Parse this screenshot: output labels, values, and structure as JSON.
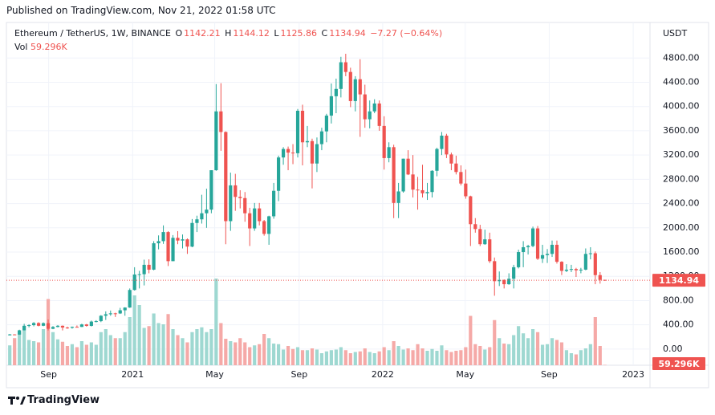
{
  "header": {
    "published": "Published on TradingView.com, Nov 21, 2022 01:58 UTC"
  },
  "footer": {
    "brand": "TradingView"
  },
  "chart_data": {
    "type": "candlestick",
    "symbol": "Ethereum / TetherUS, 1W, BINANCE",
    "ohlc_labels": [
      "O",
      "H",
      "L",
      "C"
    ],
    "change": "−7.27 (−0.64%)",
    "volume_name": "Vol",
    "volume_label": "59.296K",
    "currency": "USDT",
    "up_color": "#26a69a",
    "down_color": "#ef5350",
    "volume_up_color": "#9ed8d1",
    "volume_down_color": "#f5a9a7",
    "grid": true,
    "xlim": [
      -0.7,
      133.4
    ],
    "xticks": [
      {
        "value": 8.1,
        "label": "Sep"
      },
      {
        "value": 25.6,
        "label": "2021"
      },
      {
        "value": 42.7,
        "label": "May"
      },
      {
        "value": 60.3,
        "label": "Sep"
      },
      {
        "value": 77.7,
        "label": "2022"
      },
      {
        "value": 94.9,
        "label": "May"
      },
      {
        "value": 112.4,
        "label": "Sep"
      },
      {
        "value": 129.9,
        "label": "2023"
      }
    ],
    "ylim": [
      -266,
      5386
    ],
    "yticks": [
      {
        "value": 0,
        "label": "0.00"
      },
      {
        "value": 400,
        "label": "400.00"
      },
      {
        "value": 800,
        "label": "800.00"
      },
      {
        "value": 1200,
        "label": "1200.00"
      },
      {
        "value": 1600,
        "label": "1600.00"
      },
      {
        "value": 2000,
        "label": "2000.00"
      },
      {
        "value": 2400,
        "label": "2400.00"
      },
      {
        "value": 2800,
        "label": "2800.00"
      },
      {
        "value": 3200,
        "label": "3200.00"
      },
      {
        "value": 3600,
        "label": "3600.00"
      },
      {
        "value": 4000,
        "label": "4000.00"
      },
      {
        "value": 4400,
        "label": "4400.00"
      },
      {
        "value": 4800,
        "label": "4800.00"
      }
    ],
    "volume_ylim": [
      0,
      16000
    ],
    "ohlc": [
      [
        228,
        250,
        225,
        242
      ],
      [
        242,
        245,
        230,
        239
      ],
      [
        239,
        320,
        236,
        310
      ],
      [
        310,
        417,
        308,
        385
      ],
      [
        385,
        410,
        358,
        395
      ],
      [
        395,
        445,
        375,
        430
      ],
      [
        430,
        443,
        375,
        385
      ],
      [
        385,
        440,
        378,
        428
      ],
      [
        428,
        488,
        308,
        335
      ],
      [
        335,
        380,
        328,
        365
      ],
      [
        365,
        395,
        358,
        385
      ],
      [
        385,
        390,
        308,
        355
      ],
      [
        355,
        370,
        335,
        352
      ],
      [
        352,
        372,
        337,
        367
      ],
      [
        367,
        390,
        360,
        366
      ],
      [
        366,
        418,
        363,
        407
      ],
      [
        407,
        415,
        370,
        383
      ],
      [
        383,
        470,
        373,
        454
      ],
      [
        454,
        477,
        440,
        461
      ],
      [
        461,
        560,
        445,
        550
      ],
      [
        550,
        622,
        480,
        575
      ],
      [
        575,
        636,
        550,
        590
      ],
      [
        590,
        600,
        530,
        588
      ],
      [
        588,
        680,
        580,
        640
      ],
      [
        640,
        690,
        550,
        685
      ],
      [
        685,
        1000,
        680,
        975
      ],
      [
        975,
        1350,
        965,
        1230
      ],
      [
        1230,
        1290,
        1000,
        1235
      ],
      [
        1235,
        1475,
        1050,
        1390
      ],
      [
        1390,
        1480,
        1250,
        1310
      ],
      [
        1310,
        1780,
        1300,
        1745
      ],
      [
        1745,
        1875,
        1645,
        1780
      ],
      [
        1780,
        2040,
        1735,
        1930
      ],
      [
        1930,
        1945,
        1370,
        1450
      ],
      [
        1450,
        1880,
        1450,
        1835
      ],
      [
        1835,
        1945,
        1730,
        1790
      ],
      [
        1790,
        1890,
        1660,
        1810
      ],
      [
        1810,
        1825,
        1570,
        1690
      ],
      [
        1690,
        2145,
        1680,
        2080
      ],
      [
        2080,
        2200,
        1930,
        2140
      ],
      [
        2140,
        2545,
        2070,
        2240
      ],
      [
        2240,
        2645,
        2000,
        2300
      ],
      [
        2300,
        2950,
        2240,
        2950
      ],
      [
        2950,
        4370,
        2940,
        3920
      ],
      [
        3920,
        4385,
        3270,
        3580
      ],
      [
        3580,
        3590,
        1730,
        2110
      ],
      [
        2110,
        2910,
        1950,
        2700
      ],
      [
        2700,
        2890,
        2280,
        2510
      ],
      [
        2510,
        2620,
        2320,
        2490
      ],
      [
        2490,
        2590,
        2100,
        2240
      ],
      [
        2240,
        2330,
        1700,
        1990
      ],
      [
        1990,
        2410,
        1950,
        2320
      ],
      [
        2320,
        2410,
        2040,
        2110
      ],
      [
        2110,
        2130,
        1870,
        1900
      ],
      [
        1900,
        2200,
        1720,
        2190
      ],
      [
        2190,
        2740,
        2150,
        2610
      ],
      [
        2610,
        3190,
        2440,
        3160
      ],
      [
        3160,
        3330,
        3040,
        3300
      ],
      [
        3300,
        3340,
        2950,
        3240
      ],
      [
        3240,
        3380,
        3050,
        3230
      ],
      [
        3230,
        3960,
        3160,
        3930
      ],
      [
        3930,
        4030,
        3030,
        3410
      ],
      [
        3410,
        3680,
        3330,
        3430
      ],
      [
        3430,
        3470,
        2650,
        3060
      ],
      [
        3060,
        3490,
        2920,
        3380
      ],
      [
        3380,
        3650,
        3280,
        3590
      ],
      [
        3590,
        3880,
        3410,
        3850
      ],
      [
        3850,
        4380,
        3720,
        4170
      ],
      [
        4170,
        4460,
        3890,
        4290
      ],
      [
        4290,
        4820,
        4150,
        4730
      ],
      [
        4730,
        4870,
        4500,
        4570
      ],
      [
        4570,
        4640,
        3990,
        4090
      ],
      [
        4090,
        4500,
        3920,
        4450
      ],
      [
        4450,
        4780,
        3500,
        4200
      ],
      [
        4200,
        4360,
        3650,
        3790
      ],
      [
        3790,
        4100,
        3640,
        3920
      ],
      [
        3920,
        4120,
        3890,
        4050
      ],
      [
        4050,
        4100,
        3600,
        3680
      ],
      [
        3680,
        3840,
        2960,
        3150
      ],
      [
        3150,
        3410,
        3080,
        3330
      ],
      [
        3330,
        3370,
        2160,
        2410
      ],
      [
        2410,
        2740,
        2160,
        2600
      ],
      [
        2600,
        3140,
        2580,
        3140
      ],
      [
        3140,
        3280,
        2870,
        2880
      ],
      [
        2880,
        3200,
        2500,
        2630
      ],
      [
        2630,
        2840,
        2300,
        2620
      ],
      [
        2620,
        3040,
        2500,
        2570
      ],
      [
        2570,
        2740,
        2460,
        2590
      ],
      [
        2590,
        2950,
        2500,
        2940
      ],
      [
        2940,
        3320,
        2850,
        3300
      ],
      [
        3300,
        3580,
        3200,
        3520
      ],
      [
        3520,
        3550,
        3150,
        3210
      ],
      [
        3210,
        3240,
        2950,
        3060
      ],
      [
        3060,
        3190,
        2880,
        2920
      ],
      [
        2920,
        3030,
        2700,
        2730
      ],
      [
        2730,
        2960,
        2480,
        2520
      ],
      [
        2520,
        2530,
        1700,
        2060
      ],
      [
        2060,
        2160,
        1920,
        1980
      ],
      [
        1980,
        2050,
        1700,
        1730
      ],
      [
        1730,
        1970,
        1720,
        1810
      ],
      [
        1810,
        1920,
        1420,
        1450
      ],
      [
        1450,
        1510,
        880,
        1120
      ],
      [
        1120,
        1280,
        1040,
        1140
      ],
      [
        1140,
        1150,
        1000,
        1070
      ],
      [
        1070,
        1250,
        1060,
        1160
      ],
      [
        1160,
        1390,
        1000,
        1350
      ],
      [
        1350,
        1640,
        1330,
        1600
      ],
      [
        1600,
        1780,
        1350,
        1680
      ],
      [
        1680,
        1720,
        1560,
        1700
      ],
      [
        1700,
        2020,
        1680,
        1990
      ],
      [
        1990,
        2030,
        1470,
        1490
      ],
      [
        1490,
        1720,
        1420,
        1550
      ],
      [
        1550,
        1650,
        1420,
        1570
      ],
      [
        1570,
        1790,
        1520,
        1720
      ],
      [
        1720,
        1790,
        1410,
        1440
      ],
      [
        1440,
        1450,
        1220,
        1290
      ],
      [
        1290,
        1400,
        1270,
        1310
      ],
      [
        1310,
        1390,
        1270,
        1320
      ],
      [
        1320,
        1340,
        1190,
        1300
      ],
      [
        1300,
        1340,
        1250,
        1310
      ],
      [
        1310,
        1660,
        1300,
        1570
      ],
      [
        1570,
        1680,
        1480,
        1580
      ],
      [
        1580,
        1610,
        1070,
        1220
      ],
      [
        1220,
        1270,
        1080,
        1142.21
      ],
      [
        1142.21,
        1144.12,
        1125.86,
        1134.94
      ]
    ],
    "volume": [
      3300,
      4500,
      5500,
      5800,
      4200,
      4000,
      3800,
      6000,
      11000,
      5500,
      4300,
      3900,
      3200,
      3500,
      3000,
      4000,
      3400,
      3800,
      3400,
      5500,
      6000,
      5000,
      4500,
      4500,
      5500,
      8000,
      11600,
      10000,
      6200,
      6500,
      8600,
      7000,
      6800,
      8500,
      6000,
      5000,
      4500,
      3800,
      5500,
      6000,
      6300,
      5500,
      6000,
      14400,
      7000,
      4400,
      4000,
      3800,
      4500,
      3800,
      3000,
      3300,
      3500,
      5200,
      4500,
      3600,
      3500,
      2600,
      3200,
      2700,
      3000,
      2500,
      2500,
      2800,
      2600,
      2000,
      2300,
      2500,
      2600,
      3000,
      2500,
      2000,
      2200,
      2300,
      2800,
      2200,
      2000,
      2300,
      3000,
      2500,
      4000,
      3200,
      2600,
      2800,
      2500,
      3500,
      2800,
      2400,
      2700,
      2400,
      3300,
      2500,
      2200,
      2400,
      2500,
      3000,
      8200,
      3500,
      3200,
      2600,
      3000,
      7500,
      4500,
      3600,
      3500,
      5000,
      6500,
      5300,
      4500,
      6000,
      5500,
      3400,
      3500,
      4500,
      4200,
      3800,
      2500,
      2000,
      1800,
      2500,
      2800,
      3500,
      8000,
      3200,
      59.296
    ]
  }
}
